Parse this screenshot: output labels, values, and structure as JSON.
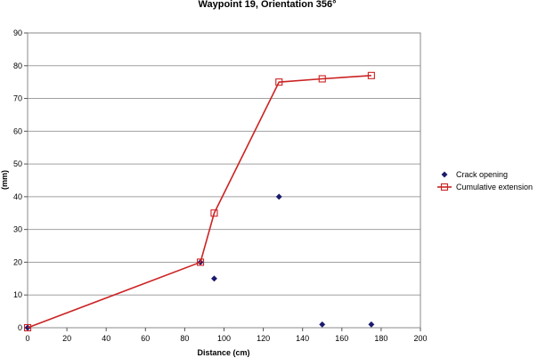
{
  "chart_data": {
    "type": "scatter",
    "title": "Waypoint 19, Orientation 356°",
    "xlabel": "Distance (cm)",
    "ylabel": "(mm)",
    "xlim": [
      0,
      200
    ],
    "ylim": [
      0,
      90
    ],
    "xticks": [
      0,
      20,
      40,
      60,
      80,
      100,
      120,
      140,
      160,
      180,
      200
    ],
    "yticks": [
      0,
      10,
      20,
      30,
      40,
      50,
      60,
      70,
      80,
      90
    ],
    "grid": true,
    "legend_position": "right",
    "series": [
      {
        "name": "Crack opening",
        "style": "markers",
        "marker": "diamond",
        "color": "#1a1a6e",
        "x": [
          0,
          88,
          95,
          128,
          150,
          175
        ],
        "y": [
          0,
          20,
          15,
          40,
          1,
          1
        ]
      },
      {
        "name": "Cumulative extension",
        "style": "line+markers",
        "marker": "square",
        "color": "#cc2222",
        "x": [
          0,
          88,
          95,
          128,
          150,
          175
        ],
        "y": [
          0,
          20,
          35,
          75,
          76,
          77
        ]
      }
    ]
  }
}
